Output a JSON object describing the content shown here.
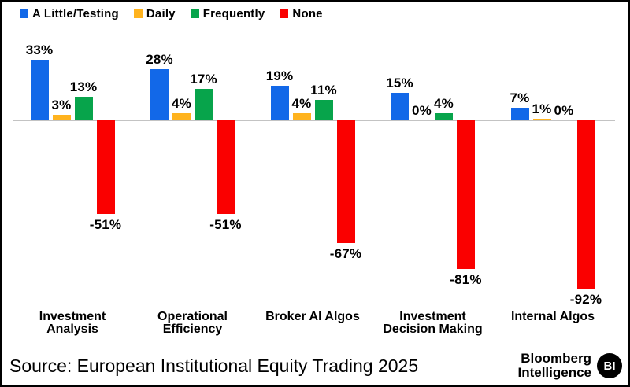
{
  "chart_data": {
    "type": "bar",
    "title": "",
    "xlabel": "",
    "ylabel": "",
    "value_suffix": "%",
    "ylim": [
      -100,
      40
    ],
    "grid": false,
    "legend_position": "top",
    "axis_line_color": "#c3c3c3",
    "categories": [
      "Investment\nAnalysis",
      "Operational\nEfficiency",
      "Broker AI Algos",
      "Investment\nDecision Making",
      "Internal Algos"
    ],
    "series": [
      {
        "name": "A Little/Testing",
        "color": "#1268e8",
        "values": [
          33,
          28,
          19,
          15,
          7
        ]
      },
      {
        "name": "Daily",
        "color": "#ffb31e",
        "values": [
          3,
          4,
          4,
          0,
          1
        ]
      },
      {
        "name": "Frequently",
        "color": "#07a44b",
        "values": [
          13,
          17,
          11,
          4,
          0
        ]
      },
      {
        "name": "None",
        "color": "#fa0000",
        "values": [
          -51,
          -51,
          -67,
          -81,
          -92
        ]
      }
    ]
  },
  "footer": {
    "source": "Source: European Institutional Equity Trading 2025",
    "brand_line1": "Bloomberg",
    "brand_line2": "Intelligence",
    "brand_badge": "BI"
  },
  "page": {
    "background": "#ffffff",
    "border_color": "#000000"
  }
}
